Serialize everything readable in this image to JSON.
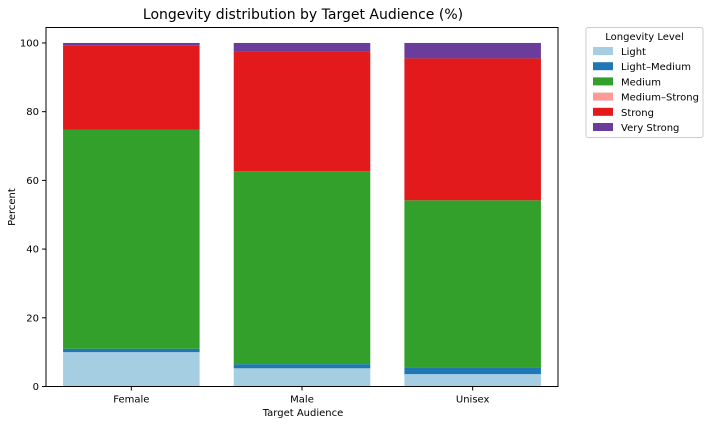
{
  "chart_data": {
    "type": "bar",
    "stacked": true,
    "title": "Longevity distribution by Target Audience (%)",
    "xlabel": "Target Audience",
    "ylabel": "Percent",
    "categories": [
      "Female",
      "Male",
      "Unisex"
    ],
    "ylim": [
      0,
      104.5
    ],
    "yticks": [
      0,
      20,
      40,
      60,
      80,
      100
    ],
    "grid": false,
    "legend": {
      "title": "Longevity Level",
      "placement": "outside-upper-right"
    },
    "series": [
      {
        "name": "Light",
        "color": "#a6cee3",
        "values": [
          10.0,
          5.3,
          3.6
        ]
      },
      {
        "name": "Light–Medium",
        "color": "#1f78b4",
        "values": [
          1.0,
          1.2,
          1.8
        ]
      },
      {
        "name": "Medium",
        "color": "#33a02c",
        "values": [
          63.8,
          56.2,
          48.8
        ]
      },
      {
        "name": "Medium–Strong",
        "color": "#fb9a99",
        "values": [
          0.0,
          0.0,
          0.0
        ]
      },
      {
        "name": "Strong",
        "color": "#e31a1c",
        "values": [
          24.4,
          34.7,
          41.3
        ]
      },
      {
        "name": "Very Strong",
        "color": "#6a3d9a",
        "values": [
          0.8,
          2.6,
          4.5
        ]
      }
    ]
  }
}
